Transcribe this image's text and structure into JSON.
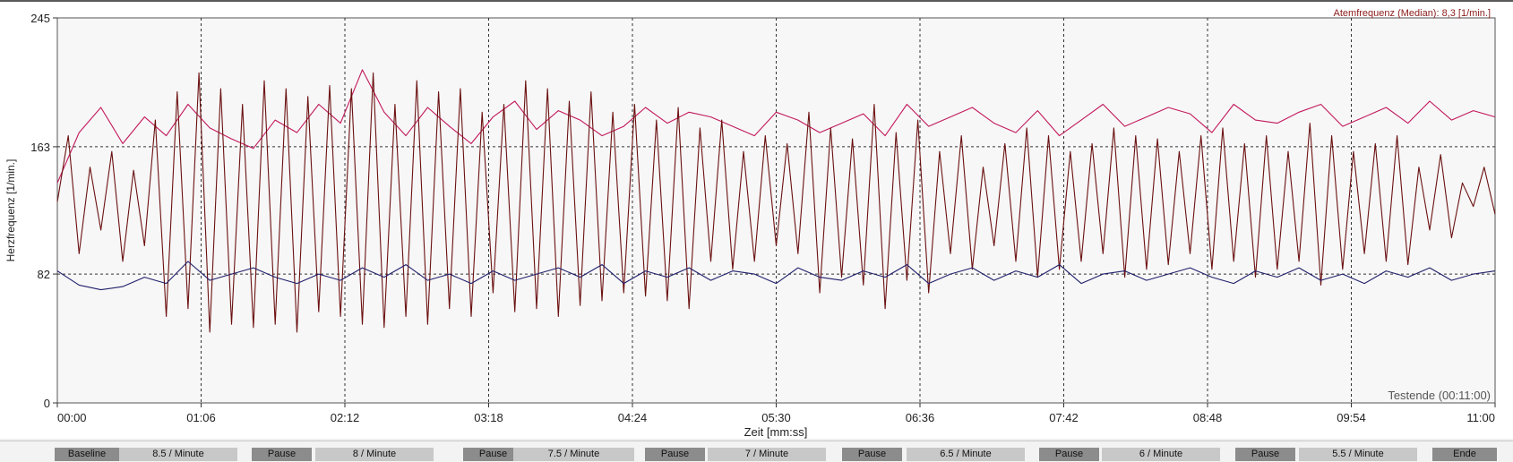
{
  "chart_data": {
    "type": "line",
    "title": "",
    "xlabel": "Zeit [mm:ss]",
    "ylabel": "Herzfrequenz [1/min.]",
    "ylim": [
      0,
      245
    ],
    "y_ticks": [
      0,
      82,
      163,
      245
    ],
    "x_range_seconds": [
      0,
      660
    ],
    "x_ticks": [
      "00:00",
      "01:06",
      "02:12",
      "03:18",
      "04:24",
      "05:30",
      "06:36",
      "07:42",
      "08:48",
      "09:54",
      "11:00"
    ],
    "grid": true,
    "legend_annotation": "Atemfrequenz (Median): 8,3 [1/min.]",
    "end_annotation": "Testende (00:11:00)",
    "series": [
      {
        "color": "#c2185b",
        "x": [
          0,
          10,
          20,
          30,
          40,
          50,
          60,
          70,
          80,
          90,
          100,
          110,
          120,
          130,
          140,
          150,
          160,
          170,
          180,
          190,
          200,
          210,
          220,
          230,
          240,
          250,
          260,
          270,
          280,
          290,
          300,
          310,
          320,
          330,
          340,
          350,
          360,
          370,
          380,
          390,
          400,
          410,
          420,
          430,
          440,
          450,
          460,
          470,
          480,
          490,
          500,
          510,
          520,
          530,
          540,
          550,
          560,
          570,
          580,
          590,
          600,
          610,
          620,
          630,
          640,
          650,
          660
        ],
        "y": [
          140,
          172,
          188,
          165,
          182,
          170,
          190,
          175,
          168,
          162,
          180,
          172,
          190,
          178,
          212,
          185,
          170,
          188,
          176,
          165,
          182,
          192,
          174,
          186,
          180,
          170,
          176,
          188,
          178,
          185,
          182,
          176,
          170,
          185,
          180,
          172,
          178,
          184,
          170,
          190,
          176,
          182,
          188,
          178,
          172,
          186,
          170,
          180,
          190,
          176,
          182,
          188,
          184,
          172,
          190,
          180,
          178,
          185,
          190,
          176,
          182,
          188,
          178,
          192,
          180,
          186,
          182
        ]
      },
      {
        "color": "#6b1010",
        "x": [
          0,
          5,
          10,
          15,
          20,
          25,
          30,
          35,
          40,
          45,
          50,
          55,
          60,
          65,
          70,
          75,
          80,
          85,
          90,
          95,
          100,
          105,
          110,
          115,
          120,
          125,
          130,
          135,
          140,
          145,
          150,
          155,
          160,
          165,
          170,
          175,
          180,
          185,
          190,
          195,
          200,
          205,
          210,
          215,
          220,
          225,
          230,
          235,
          240,
          245,
          250,
          255,
          260,
          265,
          270,
          275,
          280,
          285,
          290,
          295,
          300,
          305,
          310,
          315,
          320,
          325,
          330,
          335,
          340,
          345,
          350,
          355,
          360,
          365,
          370,
          375,
          380,
          385,
          390,
          395,
          400,
          405,
          410,
          415,
          420,
          425,
          430,
          435,
          440,
          445,
          450,
          455,
          460,
          465,
          470,
          475,
          480,
          485,
          490,
          495,
          500,
          505,
          510,
          515,
          520,
          525,
          530,
          535,
          540,
          545,
          550,
          555,
          560,
          565,
          570,
          575,
          580,
          585,
          590,
          595,
          600,
          605,
          610,
          615,
          620,
          625,
          630,
          635,
          640,
          645,
          650,
          655,
          660
        ],
        "y": [
          128,
          170,
          95,
          150,
          110,
          160,
          90,
          148,
          100,
          180,
          55,
          198,
          60,
          210,
          45,
          200,
          50,
          190,
          48,
          205,
          50,
          200,
          45,
          195,
          58,
          202,
          55,
          200,
          50,
          210,
          48,
          190,
          55,
          205,
          50,
          198,
          60,
          200,
          55,
          185,
          70,
          190,
          58,
          205,
          60,
          200,
          55,
          192,
          62,
          198,
          65,
          185,
          70,
          190,
          68,
          180,
          65,
          188,
          60,
          175,
          90,
          180,
          85,
          160,
          90,
          170,
          100,
          165,
          95,
          185,
          70,
          175,
          80,
          168,
          75,
          190,
          60,
          172,
          78,
          180,
          70,
          160,
          95,
          170,
          85,
          150,
          100,
          165,
          90,
          175,
          80,
          170,
          85,
          160,
          90,
          165,
          95,
          175,
          80,
          170,
          85,
          168,
          88,
          160,
          95,
          170,
          85,
          175,
          90,
          165,
          80,
          170,
          85,
          160,
          90,
          178,
          75,
          170,
          85,
          160,
          95,
          165,
          90,
          170,
          88,
          150,
          110,
          158,
          105,
          140,
          125,
          150,
          120
        ]
      },
      {
        "color": "#1f1f6b",
        "x": [
          0,
          10,
          20,
          30,
          40,
          50,
          60,
          70,
          80,
          90,
          100,
          110,
          120,
          130,
          140,
          150,
          160,
          170,
          180,
          190,
          200,
          210,
          220,
          230,
          240,
          250,
          260,
          270,
          280,
          290,
          300,
          310,
          320,
          330,
          340,
          350,
          360,
          370,
          380,
          390,
          400,
          410,
          420,
          430,
          440,
          450,
          460,
          470,
          480,
          490,
          500,
          510,
          520,
          530,
          540,
          550,
          560,
          570,
          580,
          590,
          600,
          610,
          620,
          630,
          640,
          650,
          660
        ],
        "y": [
          84,
          75,
          72,
          74,
          80,
          76,
          90,
          78,
          82,
          86,
          80,
          76,
          82,
          78,
          86,
          80,
          88,
          78,
          82,
          76,
          84,
          78,
          82,
          86,
          80,
          88,
          76,
          84,
          80,
          86,
          78,
          84,
          82,
          76,
          86,
          80,
          78,
          84,
          80,
          88,
          76,
          82,
          86,
          78,
          84,
          80,
          88,
          76,
          82,
          84,
          78,
          82,
          86,
          80,
          76,
          84,
          80,
          86,
          78,
          82,
          76,
          84,
          80,
          86,
          78,
          82,
          84
        ]
      }
    ]
  },
  "phases": [
    {
      "label": "Baseline",
      "tone": "dark"
    },
    {
      "label": "8.5 / Minute",
      "tone": "light"
    },
    {
      "label": "Pause",
      "tone": "dark"
    },
    {
      "label": "8 / Minute",
      "tone": "light"
    },
    {
      "label": "Pause",
      "tone": "dark"
    },
    {
      "label": "7.5 / Minute",
      "tone": "light"
    },
    {
      "label": "Pause",
      "tone": "dark"
    },
    {
      "label": "7 / Minute",
      "tone": "light"
    },
    {
      "label": "Pause",
      "tone": "dark"
    },
    {
      "label": "6.5 / Minute",
      "tone": "light"
    },
    {
      "label": "Pause",
      "tone": "dark"
    },
    {
      "label": "6 / Minute",
      "tone": "light"
    },
    {
      "label": "Pause",
      "tone": "dark"
    },
    {
      "label": "5.5 / Minute",
      "tone": "light"
    },
    {
      "label": "Ende",
      "tone": "dark"
    }
  ],
  "colors": {
    "plot_background": "#f7f7f7",
    "grid": "#333333",
    "legend_annotation": "#8b1a1a",
    "end_annotation": "#555555"
  }
}
